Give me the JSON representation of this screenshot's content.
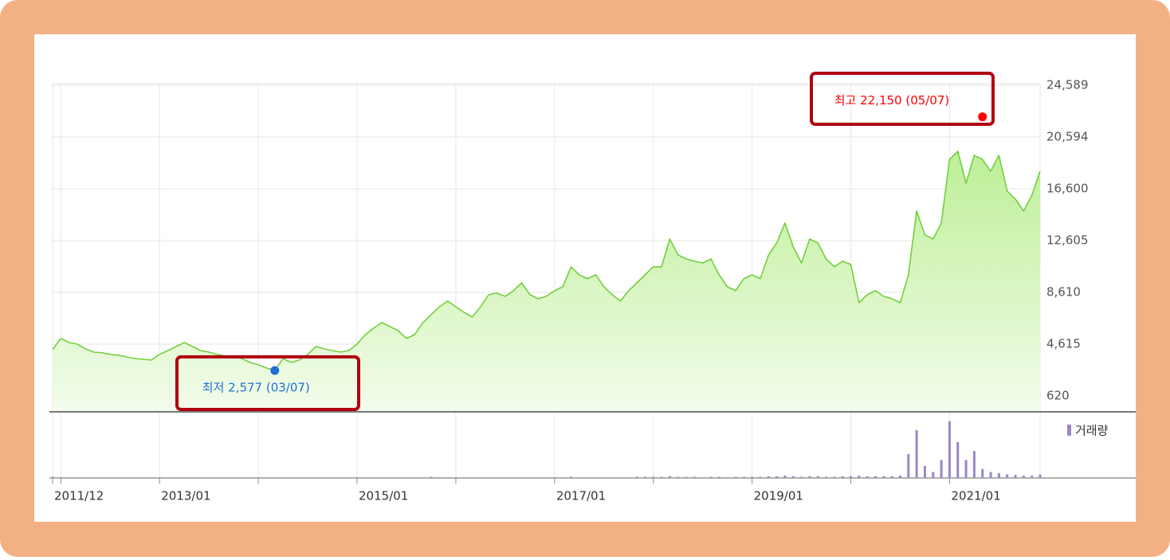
{
  "chart_data": [
    {
      "type": "line",
      "x": [
        "2011/12",
        "2012/01",
        "2012/02",
        "2012/03",
        "2012/04",
        "2012/05",
        "2012/06",
        "2012/07",
        "2012/08",
        "2012/09",
        "2012/10",
        "2012/11",
        "2012/12",
        "2013/01",
        "2013/02",
        "2013/03",
        "2013/04",
        "2013/05",
        "2013/06",
        "2013/07",
        "2013/08",
        "2013/09",
        "2013/10",
        "2013/11",
        "2013/12",
        "2014/01",
        "2014/02",
        "2014/03",
        "2014/04",
        "2014/05",
        "2014/06",
        "2014/07",
        "2014/08",
        "2014/09",
        "2014/10",
        "2014/11",
        "2014/12",
        "2015/01",
        "2015/02",
        "2015/03",
        "2015/04",
        "2015/05",
        "2015/06",
        "2015/07",
        "2015/08",
        "2015/09",
        "2015/10",
        "2015/11",
        "2015/12",
        "2016/01",
        "2016/02",
        "2016/03",
        "2016/04",
        "2016/05",
        "2016/06",
        "2016/07",
        "2016/08",
        "2016/09",
        "2016/10",
        "2016/11",
        "2016/12",
        "2017/01",
        "2017/02",
        "2017/03",
        "2017/04",
        "2017/05",
        "2017/06",
        "2017/07",
        "2017/08",
        "2017/09",
        "2017/10",
        "2017/11",
        "2017/12",
        "2018/01",
        "2018/02",
        "2018/03",
        "2018/04",
        "2018/05",
        "2018/06",
        "2018/07",
        "2018/08",
        "2018/09",
        "2018/10",
        "2018/11",
        "2018/12",
        "2019/01",
        "2019/02",
        "2019/03",
        "2019/04",
        "2019/05",
        "2019/06",
        "2019/07",
        "2019/08",
        "2019/09",
        "2019/10",
        "2019/11",
        "2019/12",
        "2020/01",
        "2020/02",
        "2020/03",
        "2020/04",
        "2020/05",
        "2020/06",
        "2020/07",
        "2020/08",
        "2020/09",
        "2020/10",
        "2020/11",
        "2020/12",
        "2021/01",
        "2021/02",
        "2021/03",
        "2021/04",
        "2021/05",
        "2021/06",
        "2021/07",
        "2021/08",
        "2021/09",
        "2021/10",
        "2021/11",
        "2021/12"
      ],
      "values": [
        4200,
        5050,
        4740,
        4615,
        4250,
        4000,
        3950,
        3820,
        3760,
        3630,
        3500,
        3450,
        3390,
        3820,
        4120,
        4430,
        4740,
        4430,
        4120,
        4000,
        3820,
        3690,
        3630,
        3500,
        3200,
        3020,
        2770,
        2590,
        3500,
        3200,
        3390,
        3820,
        4430,
        4250,
        4120,
        4000,
        4120,
        4615,
        5350,
        5840,
        6280,
        5970,
        5660,
        5050,
        5350,
        6280,
        6890,
        7500,
        7940,
        7500,
        7070,
        6710,
        7500,
        8430,
        8550,
        8300,
        8740,
        9350,
        8430,
        8120,
        8300,
        8740,
        9040,
        10580,
        9960,
        9660,
        9960,
        9040,
        8430,
        7940,
        8740,
        9350,
        9960,
        10580,
        10580,
        12730,
        11500,
        11190,
        11010,
        10880,
        11190,
        9960,
        9040,
        8740,
        9660,
        9960,
        9660,
        11500,
        12420,
        13960,
        12110,
        10880,
        12730,
        12420,
        11190,
        10580,
        11010,
        10760,
        7810,
        8430,
        8740,
        8300,
        8120,
        7810,
        9960,
        14880,
        13040,
        12730,
        13960,
        18870,
        19490,
        17030,
        19180,
        18870,
        17950,
        19180,
        16420,
        15800,
        14880,
        16110,
        17950
      ],
      "color": "#72d03c",
      "ylim": [
        620,
        24589
      ],
      "yticks": [
        {
          "value": 24589,
          "label": "24,589"
        },
        {
          "value": 20594,
          "label": "20,594"
        },
        {
          "value": 16600,
          "label": "16,600"
        },
        {
          "value": 12605,
          "label": "12,605"
        },
        {
          "value": 8610,
          "label": "8,610"
        },
        {
          "value": 4615,
          "label": "4,615"
        },
        {
          "value": 620,
          "label": "620"
        }
      ],
      "xticks": [
        "2011/12",
        "2013/01",
        "2015/01",
        "2017/01",
        "2019/01",
        "2021/01"
      ],
      "grid": true,
      "annotations": [
        {
          "text": "최고 22,150 (05/07)",
          "x": "2021/05",
          "value": 22150,
          "color": "#ff0000"
        },
        {
          "text": "최저 2,577 (03/07)",
          "x": "2014/03",
          "value": 2577,
          "color": "#1f6fd8"
        }
      ]
    },
    {
      "type": "bar",
      "series": [
        {
          "name": "거래량",
          "color": "#9b86c8",
          "values": [
            2,
            1,
            1,
            1,
            1,
            1,
            1,
            1,
            1,
            1,
            1,
            1,
            1,
            1,
            1,
            1,
            1,
            1,
            1,
            1,
            1,
            1,
            1,
            1,
            1,
            1,
            1,
            1,
            1,
            1,
            1,
            1,
            1,
            1,
            1,
            1,
            1,
            1,
            1,
            1,
            1,
            1,
            1,
            1,
            1,
            1,
            2,
            1,
            1,
            1,
            1,
            1,
            1,
            1,
            1,
            1,
            1,
            1,
            1,
            1,
            1,
            1,
            1,
            2,
            1,
            1,
            1,
            1,
            1,
            1,
            1,
            2,
            2,
            2,
            2,
            3,
            2,
            2,
            2,
            1,
            2,
            2,
            1,
            2,
            2,
            2,
            2,
            3,
            3,
            4,
            3,
            2,
            3,
            3,
            2,
            2,
            3,
            3,
            4,
            3,
            3,
            3,
            3,
            4,
            40,
            80,
            20,
            10,
            30,
            95,
            60,
            30,
            45,
            15,
            10,
            8,
            6,
            5,
            4,
            4,
            6
          ]
        }
      ],
      "ylim": [
        0,
        100
      ]
    }
  ]
}
